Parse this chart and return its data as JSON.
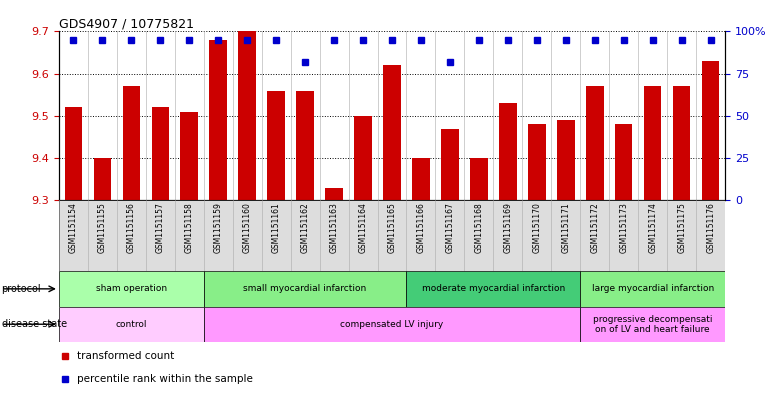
{
  "title": "GDS4907 / 10775821",
  "samples": [
    "GSM1151154",
    "GSM1151155",
    "GSM1151156",
    "GSM1151157",
    "GSM1151158",
    "GSM1151159",
    "GSM1151160",
    "GSM1151161",
    "GSM1151162",
    "GSM1151163",
    "GSM1151164",
    "GSM1151165",
    "GSM1151166",
    "GSM1151167",
    "GSM1151168",
    "GSM1151169",
    "GSM1151170",
    "GSM1151171",
    "GSM1151172",
    "GSM1151173",
    "GSM1151174",
    "GSM1151175",
    "GSM1151176"
  ],
  "bar_values": [
    9.52,
    9.4,
    9.57,
    9.52,
    9.51,
    9.68,
    9.7,
    9.56,
    9.56,
    9.33,
    9.5,
    9.62,
    9.4,
    9.47,
    9.4,
    9.53,
    9.48,
    9.49,
    9.57,
    9.48,
    9.57,
    9.57,
    9.63
  ],
  "dot_values": [
    95,
    95,
    95,
    95,
    95,
    95,
    95,
    95,
    82,
    95,
    95,
    95,
    95,
    82,
    95,
    95,
    95,
    95,
    95,
    95,
    95,
    95,
    95
  ],
  "ylim_left": [
    9.3,
    9.7
  ],
  "ylim_right": [
    0,
    100
  ],
  "yticks_left": [
    9.3,
    9.4,
    9.5,
    9.6,
    9.7
  ],
  "yticks_right": [
    0,
    25,
    50,
    75,
    100
  ],
  "bar_color": "#cc0000",
  "dot_color": "#0000cc",
  "protocol_groups": [
    {
      "label": "sham operation",
      "start": 0,
      "end": 5,
      "color": "#aaffaa"
    },
    {
      "label": "small myocardial infarction",
      "start": 5,
      "end": 12,
      "color": "#88ee88"
    },
    {
      "label": "moderate myocardial infarction",
      "start": 12,
      "end": 18,
      "color": "#44cc77"
    },
    {
      "label": "large myocardial infarction",
      "start": 18,
      "end": 23,
      "color": "#88ee88"
    }
  ],
  "disease_groups": [
    {
      "label": "control",
      "start": 0,
      "end": 5,
      "color": "#ffccff"
    },
    {
      "label": "compensated LV injury",
      "start": 5,
      "end": 18,
      "color": "#ff99ff"
    },
    {
      "label": "progressive decompensati\non of LV and heart failure",
      "start": 18,
      "end": 23,
      "color": "#ff99ff"
    }
  ],
  "legend_bar_label": "transformed count",
  "legend_dot_label": "percentile rank within the sample",
  "bar_color_legend": "#cc0000",
  "dot_color_legend": "#0000cc",
  "right_axis_color": "#0000cc",
  "left_axis_color": "#cc0000",
  "title_fontsize": 9,
  "xlabel_fontsize": 5.5,
  "ylabel_fontsize": 8,
  "bar_width": 0.6
}
